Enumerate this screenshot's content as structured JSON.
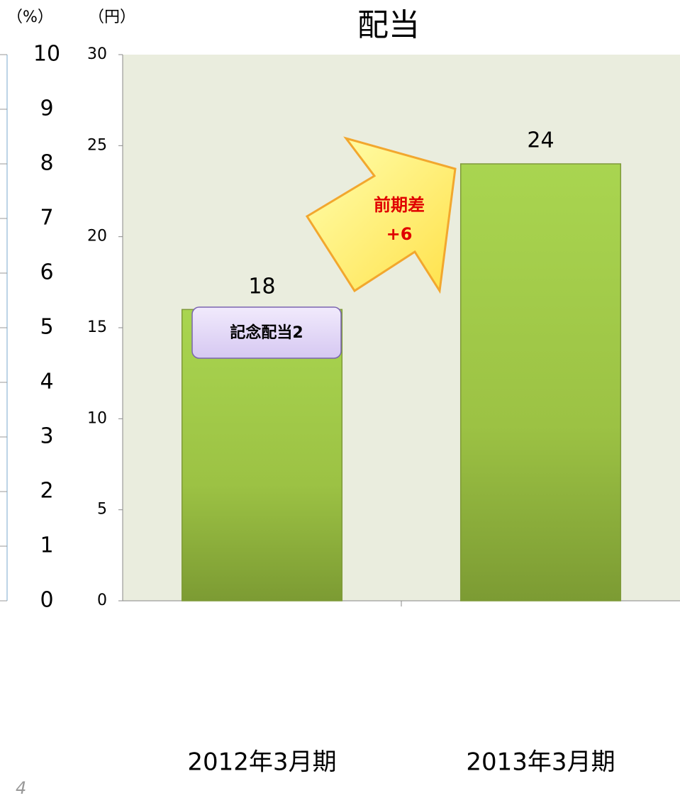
{
  "chart_data": [
    {
      "type": "axis",
      "ylabel": "（%）",
      "ylim": [
        0,
        10
      ],
      "yticks": [
        0,
        1,
        2,
        3,
        4,
        5,
        6,
        7,
        8,
        9,
        10
      ]
    },
    {
      "type": "bar",
      "title": "配当",
      "ylabel": "（円）",
      "categories": [
        "2012年3月期",
        "2013年3月期"
      ],
      "values": [
        16,
        24
      ],
      "color": "#9cc244",
      "ylim": [
        0,
        30
      ],
      "yticks": [
        0,
        5,
        10,
        15,
        20,
        25,
        30
      ],
      "annotations": {
        "total": 18,
        "note": "記念配当2",
        "arrow": [
          "前期差",
          "+6"
        ]
      }
    }
  ],
  "page_number": "4"
}
